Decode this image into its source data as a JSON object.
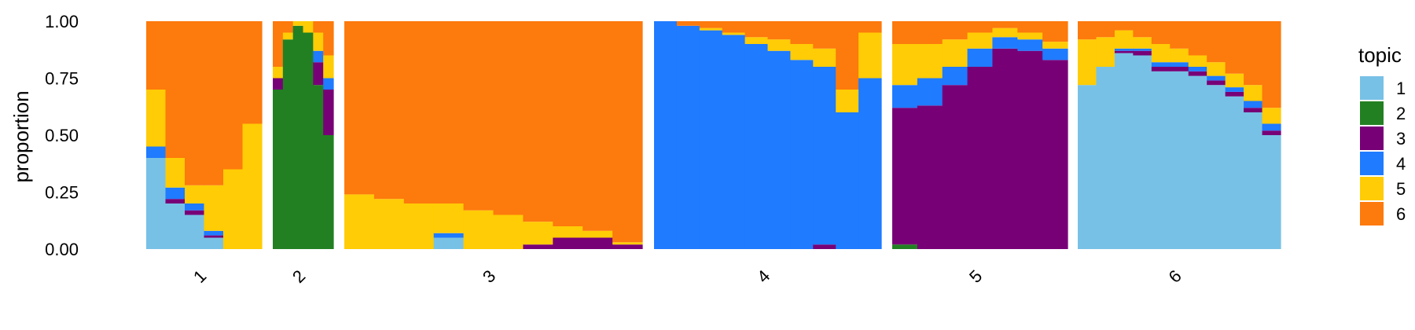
{
  "chart_data": {
    "type": "bar",
    "subtype": "stacked-structure-plot",
    "title": "",
    "xlabel": "",
    "ylabel": "proportion",
    "ylim": [
      0,
      1
    ],
    "yticks": [
      "0.00",
      "0.25",
      "0.50",
      "0.75",
      "1.00"
    ],
    "ytick_values": [
      0,
      0.25,
      0.5,
      0.75,
      1
    ],
    "legend": {
      "title": "topic",
      "position": "right"
    },
    "grid": false,
    "topics": [
      {
        "name": "1",
        "color": "#78c1e6"
      },
      {
        "name": "2",
        "color": "#228022"
      },
      {
        "name": "3",
        "color": "#770077"
      },
      {
        "name": "4",
        "color": "#1f7bff"
      },
      {
        "name": "5",
        "color": "#ffcc05"
      },
      {
        "name": "6",
        "color": "#fd7a0c"
      }
    ],
    "groups": [
      {
        "label": "1",
        "samples": [
          [
            0.4,
            0.0,
            0.0,
            0.05,
            0.25,
            0.3
          ],
          [
            0.2,
            0.0,
            0.02,
            0.05,
            0.13,
            0.6
          ],
          [
            0.15,
            0.0,
            0.02,
            0.03,
            0.08,
            0.72
          ],
          [
            0.05,
            0.0,
            0.01,
            0.02,
            0.2,
            0.72
          ],
          [
            0.0,
            0.0,
            0.0,
            0.0,
            0.35,
            0.65
          ],
          [
            0.0,
            0.0,
            0.0,
            0.0,
            0.55,
            0.45
          ]
        ]
      },
      {
        "label": "2",
        "samples": [
          [
            0.0,
            0.7,
            0.05,
            0.0,
            0.05,
            0.2
          ],
          [
            0.0,
            0.92,
            0.0,
            0.0,
            0.03,
            0.05
          ],
          [
            0.0,
            0.98,
            0.0,
            0.0,
            0.02,
            0.0
          ],
          [
            0.0,
            0.95,
            0.0,
            0.0,
            0.05,
            0.0
          ],
          [
            0.0,
            0.72,
            0.1,
            0.05,
            0.08,
            0.05
          ],
          [
            0.0,
            0.5,
            0.2,
            0.05,
            0.1,
            0.15
          ]
        ]
      },
      {
        "label": "3",
        "samples": [
          [
            0.0,
            0.0,
            0.0,
            0.0,
            0.24,
            0.76
          ],
          [
            0.0,
            0.0,
            0.0,
            0.0,
            0.22,
            0.78
          ],
          [
            0.0,
            0.0,
            0.0,
            0.0,
            0.2,
            0.8
          ],
          [
            0.05,
            0.0,
            0.0,
            0.02,
            0.13,
            0.8
          ],
          [
            0.0,
            0.0,
            0.0,
            0.0,
            0.17,
            0.83
          ],
          [
            0.0,
            0.0,
            0.0,
            0.0,
            0.15,
            0.85
          ],
          [
            0.0,
            0.0,
            0.02,
            0.0,
            0.1,
            0.88
          ],
          [
            0.0,
            0.0,
            0.05,
            0.0,
            0.05,
            0.9
          ],
          [
            0.0,
            0.0,
            0.05,
            0.0,
            0.03,
            0.92
          ],
          [
            0.0,
            0.0,
            0.02,
            0.0,
            0.01,
            0.97
          ]
        ]
      },
      {
        "label": "4",
        "samples": [
          [
            0.0,
            0.0,
            0.0,
            1.0,
            0.0,
            0.0
          ],
          [
            0.0,
            0.0,
            0.0,
            0.98,
            0.0,
            0.02
          ],
          [
            0.0,
            0.0,
            0.0,
            0.96,
            0.01,
            0.03
          ],
          [
            0.0,
            0.0,
            0.0,
            0.94,
            0.01,
            0.05
          ],
          [
            0.0,
            0.0,
            0.0,
            0.9,
            0.03,
            0.07
          ],
          [
            0.0,
            0.0,
            0.0,
            0.87,
            0.05,
            0.08
          ],
          [
            0.0,
            0.0,
            0.0,
            0.83,
            0.07,
            0.1
          ],
          [
            0.0,
            0.0,
            0.02,
            0.78,
            0.08,
            0.12
          ],
          [
            0.0,
            0.0,
            0.0,
            0.6,
            0.1,
            0.3
          ],
          [
            0.0,
            0.0,
            0.0,
            0.75,
            0.2,
            0.05
          ]
        ]
      },
      {
        "label": "5",
        "samples": [
          [
            0.0,
            0.02,
            0.6,
            0.1,
            0.18,
            0.1
          ],
          [
            0.0,
            0.0,
            0.63,
            0.12,
            0.15,
            0.1
          ],
          [
            0.0,
            0.0,
            0.72,
            0.08,
            0.12,
            0.08
          ],
          [
            0.0,
            0.0,
            0.8,
            0.08,
            0.07,
            0.05
          ],
          [
            0.0,
            0.0,
            0.88,
            0.05,
            0.04,
            0.03
          ],
          [
            0.0,
            0.0,
            0.87,
            0.05,
            0.03,
            0.05
          ],
          [
            0.0,
            0.0,
            0.83,
            0.05,
            0.03,
            0.09
          ]
        ]
      },
      {
        "label": "6",
        "samples": [
          [
            0.72,
            0.0,
            0.0,
            0.0,
            0.2,
            0.08
          ],
          [
            0.8,
            0.0,
            0.0,
            0.0,
            0.13,
            0.07
          ],
          [
            0.86,
            0.0,
            0.01,
            0.01,
            0.08,
            0.04
          ],
          [
            0.85,
            0.0,
            0.02,
            0.01,
            0.05,
            0.07
          ],
          [
            0.78,
            0.0,
            0.02,
            0.02,
            0.08,
            0.1
          ],
          [
            0.78,
            0.0,
            0.02,
            0.02,
            0.06,
            0.12
          ],
          [
            0.76,
            0.0,
            0.02,
            0.02,
            0.05,
            0.15
          ],
          [
            0.72,
            0.0,
            0.02,
            0.02,
            0.06,
            0.18
          ],
          [
            0.67,
            0.0,
            0.02,
            0.02,
            0.06,
            0.23
          ],
          [
            0.6,
            0.0,
            0.02,
            0.03,
            0.07,
            0.28
          ],
          [
            0.5,
            0.0,
            0.02,
            0.03,
            0.07,
            0.38
          ]
        ]
      }
    ]
  }
}
